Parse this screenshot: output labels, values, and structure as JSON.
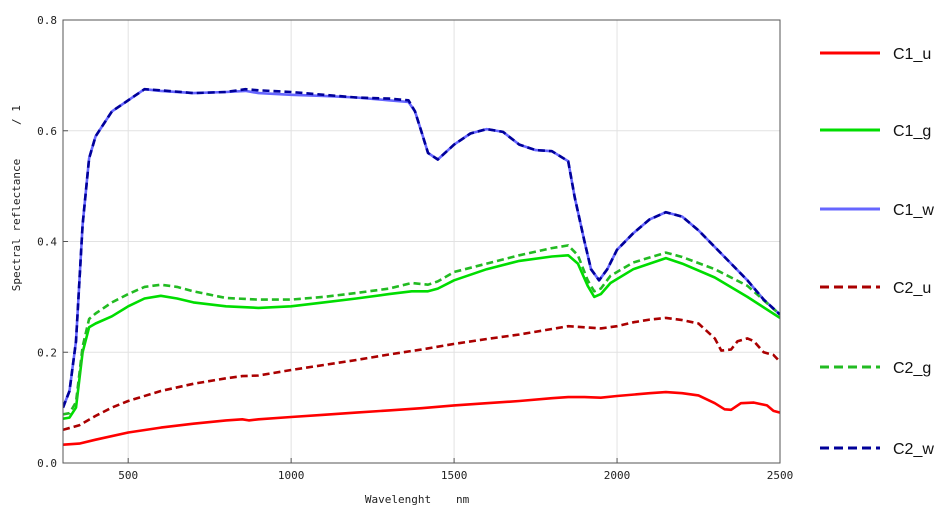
{
  "chart_data": {
    "type": "line",
    "title": "",
    "xlabel": "Wavelenght",
    "xunit": "nm",
    "ylabel": "Spectral reflectance",
    "yunit": "/ 1",
    "xlim": [
      300,
      2500
    ],
    "ylim": [
      0.0,
      0.8
    ],
    "xticks": [
      500,
      1000,
      1500,
      2000,
      2500
    ],
    "yticks": [
      0.0,
      0.2,
      0.4,
      0.6,
      0.8
    ],
    "xtick_labels": [
      "500",
      "1000",
      "1500",
      "2000",
      "2500"
    ],
    "ytick_labels": [
      "0.0",
      "0.2",
      "0.4",
      "0.6",
      "0.8"
    ],
    "grid": true,
    "legend_position": "right",
    "series": [
      {
        "name": "C1_u",
        "color": "#ff0000",
        "dash": "solid",
        "x": [
          300,
          350,
          400,
          500,
          600,
          700,
          800,
          850,
          870,
          900,
          1000,
          1100,
          1200,
          1300,
          1400,
          1500,
          1600,
          1700,
          1800,
          1850,
          1900,
          1950,
          2000,
          2100,
          2150,
          2200,
          2250,
          2300,
          2330,
          2350,
          2380,
          2420,
          2460,
          2480,
          2500
        ],
        "y": [
          0.033,
          0.035,
          0.042,
          0.055,
          0.064,
          0.071,
          0.077,
          0.079,
          0.077,
          0.079,
          0.083,
          0.087,
          0.091,
          0.095,
          0.099,
          0.104,
          0.108,
          0.112,
          0.117,
          0.119,
          0.119,
          0.118,
          0.121,
          0.126,
          0.128,
          0.126,
          0.122,
          0.108,
          0.097,
          0.096,
          0.108,
          0.109,
          0.104,
          0.094,
          0.091
        ]
      },
      {
        "name": "C1_g",
        "color": "#00dd00",
        "dash": "solid",
        "x": [
          300,
          320,
          340,
          360,
          380,
          400,
          450,
          500,
          550,
          600,
          650,
          700,
          800,
          900,
          1000,
          1100,
          1200,
          1300,
          1370,
          1420,
          1450,
          1500,
          1600,
          1700,
          1800,
          1850,
          1880,
          1910,
          1930,
          1950,
          1980,
          2050,
          2150,
          2200,
          2300,
          2400,
          2500
        ],
        "y": [
          0.08,
          0.082,
          0.1,
          0.2,
          0.245,
          0.252,
          0.265,
          0.283,
          0.297,
          0.302,
          0.297,
          0.29,
          0.283,
          0.28,
          0.283,
          0.29,
          0.297,
          0.305,
          0.31,
          0.31,
          0.315,
          0.33,
          0.35,
          0.365,
          0.373,
          0.375,
          0.36,
          0.32,
          0.3,
          0.305,
          0.325,
          0.35,
          0.37,
          0.36,
          0.335,
          0.3,
          0.262
        ]
      },
      {
        "name": "C1_w",
        "color": "#6666ff",
        "dash": "solid",
        "x": [
          300,
          320,
          340,
          360,
          380,
          400,
          450,
          500,
          550,
          600,
          700,
          800,
          860,
          900,
          1000,
          1100,
          1200,
          1300,
          1360,
          1380,
          1400,
          1420,
          1450,
          1500,
          1550,
          1600,
          1650,
          1700,
          1750,
          1800,
          1850,
          1870,
          1900,
          1920,
          1945,
          1970,
          2000,
          2050,
          2100,
          2150,
          2200,
          2250,
          2300,
          2350,
          2400,
          2450,
          2500
        ],
        "y": [
          0.1,
          0.13,
          0.22,
          0.43,
          0.55,
          0.59,
          0.635,
          0.655,
          0.675,
          0.672,
          0.668,
          0.67,
          0.672,
          0.668,
          0.665,
          0.663,
          0.66,
          0.655,
          0.652,
          0.635,
          0.598,
          0.56,
          0.548,
          0.575,
          0.595,
          0.603,
          0.598,
          0.575,
          0.565,
          0.563,
          0.545,
          0.48,
          0.4,
          0.35,
          0.33,
          0.35,
          0.385,
          0.415,
          0.44,
          0.453,
          0.445,
          0.42,
          0.39,
          0.36,
          0.33,
          0.295,
          0.268
        ]
      },
      {
        "name": "C2_u",
        "color": "#aa0000",
        "dash": "dashed",
        "x": [
          300,
          350,
          400,
          450,
          500,
          600,
          700,
          800,
          850,
          900,
          1000,
          1100,
          1200,
          1300,
          1400,
          1500,
          1600,
          1700,
          1800,
          1850,
          1900,
          1950,
          2000,
          2050,
          2100,
          2150,
          2200,
          2250,
          2300,
          2320,
          2350,
          2370,
          2400,
          2420,
          2450,
          2480,
          2500
        ],
        "y": [
          0.06,
          0.068,
          0.085,
          0.1,
          0.112,
          0.13,
          0.143,
          0.153,
          0.157,
          0.158,
          0.168,
          0.177,
          0.186,
          0.196,
          0.205,
          0.215,
          0.224,
          0.232,
          0.242,
          0.247,
          0.245,
          0.243,
          0.247,
          0.254,
          0.259,
          0.262,
          0.258,
          0.252,
          0.225,
          0.203,
          0.205,
          0.22,
          0.225,
          0.22,
          0.2,
          0.195,
          0.183
        ]
      },
      {
        "name": "C2_g",
        "color": "#22bb22",
        "dash": "dashed",
        "x": [
          300,
          320,
          340,
          360,
          380,
          400,
          450,
          500,
          550,
          600,
          650,
          700,
          800,
          900,
          1000,
          1100,
          1200,
          1300,
          1370,
          1420,
          1450,
          1500,
          1600,
          1700,
          1800,
          1850,
          1880,
          1910,
          1930,
          1950,
          1980,
          2050,
          2150,
          2200,
          2300,
          2400,
          2500
        ],
        "y": [
          0.088,
          0.09,
          0.11,
          0.21,
          0.26,
          0.27,
          0.29,
          0.305,
          0.318,
          0.322,
          0.318,
          0.31,
          0.298,
          0.295,
          0.295,
          0.3,
          0.307,
          0.315,
          0.325,
          0.322,
          0.328,
          0.345,
          0.36,
          0.375,
          0.388,
          0.393,
          0.375,
          0.33,
          0.31,
          0.315,
          0.338,
          0.362,
          0.38,
          0.372,
          0.35,
          0.32,
          0.268
        ]
      },
      {
        "name": "C2_w",
        "color": "#000099",
        "dash": "dashed",
        "x": [
          300,
          320,
          340,
          360,
          380,
          400,
          450,
          500,
          550,
          600,
          700,
          800,
          860,
          900,
          1000,
          1100,
          1200,
          1300,
          1360,
          1380,
          1400,
          1420,
          1450,
          1500,
          1550,
          1600,
          1650,
          1700,
          1750,
          1800,
          1850,
          1870,
          1900,
          1920,
          1945,
          1970,
          2000,
          2050,
          2100,
          2150,
          2200,
          2250,
          2300,
          2350,
          2400,
          2450,
          2500
        ],
        "y": [
          0.1,
          0.13,
          0.22,
          0.43,
          0.55,
          0.59,
          0.635,
          0.655,
          0.675,
          0.673,
          0.668,
          0.67,
          0.675,
          0.673,
          0.67,
          0.665,
          0.66,
          0.658,
          0.655,
          0.635,
          0.598,
          0.56,
          0.548,
          0.575,
          0.595,
          0.603,
          0.598,
          0.575,
          0.565,
          0.563,
          0.545,
          0.48,
          0.4,
          0.35,
          0.33,
          0.35,
          0.385,
          0.415,
          0.44,
          0.453,
          0.445,
          0.42,
          0.39,
          0.36,
          0.33,
          0.295,
          0.268
        ]
      }
    ]
  }
}
